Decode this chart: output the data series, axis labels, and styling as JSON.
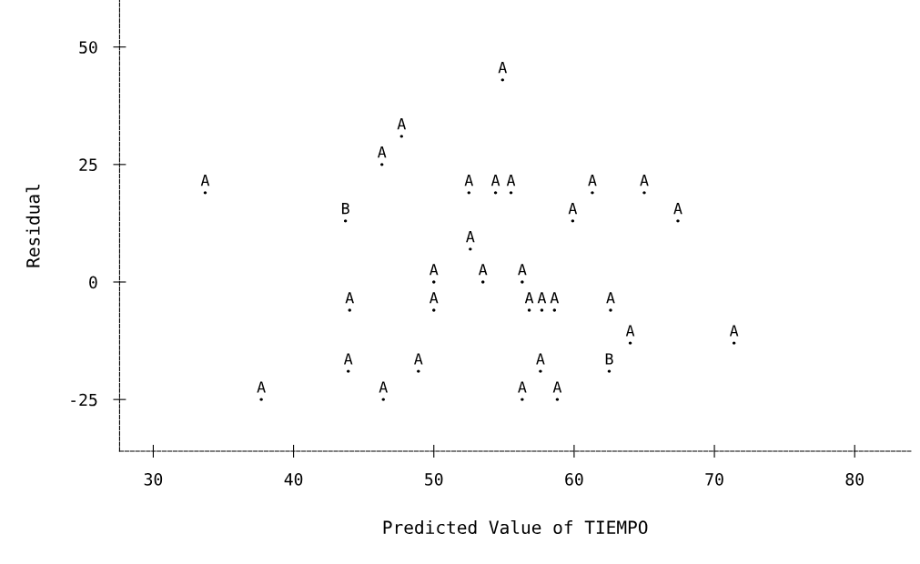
{
  "chart_data": {
    "type": "scatter",
    "xlabel": "Predicted Value of TIEMPO",
    "ylabel": "Residual",
    "xlim": [
      27.6,
      84
    ],
    "ylim": [
      -36,
      60
    ],
    "xticks": [
      30,
      40,
      50,
      60,
      70,
      80
    ],
    "yticks": [
      -25,
      0,
      25,
      50
    ],
    "marker": "circle",
    "grid": false,
    "line_style": "dashed",
    "series": [
      {
        "color": "#000000",
        "x": [
          54.9,
          47.7,
          46.3,
          33.7,
          52.5,
          54.4,
          55.5,
          61.3,
          65.0,
          43.7,
          59.9,
          67.4,
          52.6,
          50.0,
          53.5,
          56.3,
          44.0,
          50.0,
          56.8,
          57.7,
          58.6,
          62.6,
          64.0,
          71.4,
          43.9,
          48.9,
          57.6,
          62.5,
          37.7,
          46.4,
          56.3,
          58.8
        ],
        "values": [
          43,
          31,
          25,
          19,
          19,
          19,
          19,
          19,
          19,
          13,
          13,
          13,
          7,
          0,
          0,
          0,
          -6,
          -6,
          -6,
          -6,
          -6,
          -6,
          -13,
          -13,
          -19,
          -19,
          -19,
          -19,
          -25,
          -25,
          -25,
          -25
        ],
        "value_labels": [
          "A",
          "A",
          "A",
          "A",
          "A",
          "A",
          "A",
          "A",
          "A",
          "B",
          "A",
          "A",
          "A",
          "A",
          "A",
          "A",
          "A",
          "A",
          "A",
          "A",
          "A",
          "A",
          "A",
          "A",
          "A",
          "A",
          "A",
          "B",
          "A",
          "A",
          "A",
          "A"
        ]
      }
    ]
  }
}
